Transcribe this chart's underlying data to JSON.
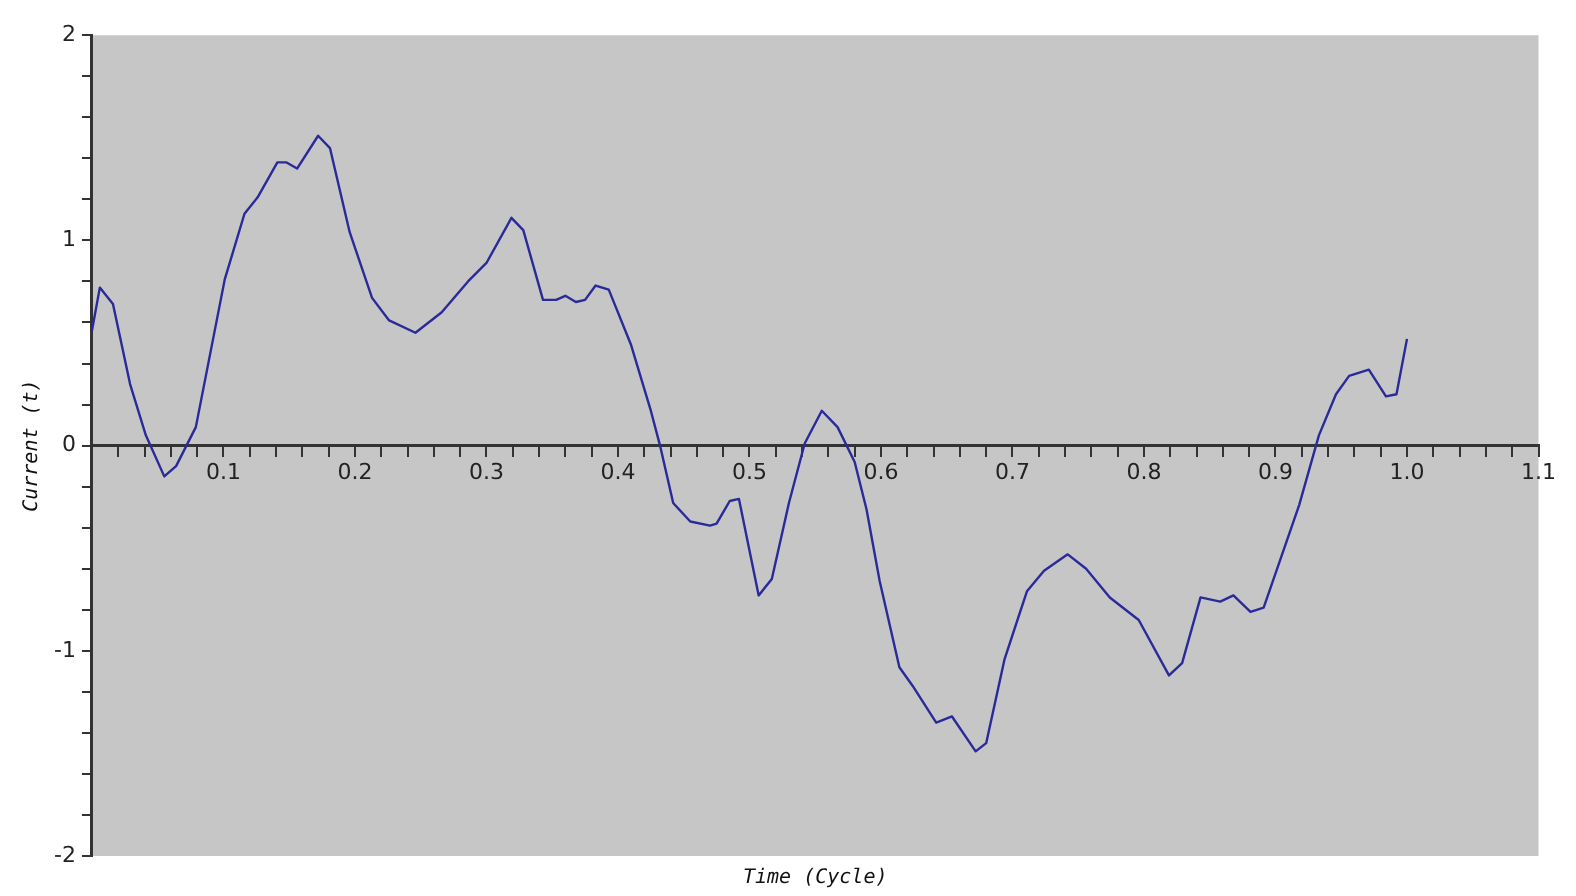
{
  "chart_data": {
    "type": "line",
    "xlabel": "Time (Cycle)",
    "ylabel": "Current (t)",
    "xlim": [
      0,
      1.1
    ],
    "ylim": [
      -2,
      2
    ],
    "xticks": [
      {
        "value": 0.02,
        "label": null
      },
      {
        "value": 0.04,
        "label": null
      },
      {
        "value": 0.06,
        "label": null
      },
      {
        "value": 0.08,
        "label": null
      },
      {
        "value": 0.1,
        "label": "0.1"
      },
      {
        "value": 0.12,
        "label": null
      },
      {
        "value": 0.14,
        "label": null
      },
      {
        "value": 0.16,
        "label": null
      },
      {
        "value": 0.18,
        "label": null
      },
      {
        "value": 0.2,
        "label": "0.2"
      },
      {
        "value": 0.22,
        "label": null
      },
      {
        "value": 0.24,
        "label": null
      },
      {
        "value": 0.26,
        "label": null
      },
      {
        "value": 0.28,
        "label": null
      },
      {
        "value": 0.3,
        "label": "0.3"
      },
      {
        "value": 0.32,
        "label": null
      },
      {
        "value": 0.34,
        "label": null
      },
      {
        "value": 0.36,
        "label": null
      },
      {
        "value": 0.38,
        "label": null
      },
      {
        "value": 0.4,
        "label": "0.4"
      },
      {
        "value": 0.42,
        "label": null
      },
      {
        "value": 0.44,
        "label": null
      },
      {
        "value": 0.46,
        "label": null
      },
      {
        "value": 0.48,
        "label": null
      },
      {
        "value": 0.5,
        "label": "0.5"
      },
      {
        "value": 0.52,
        "label": null
      },
      {
        "value": 0.54,
        "label": null
      },
      {
        "value": 0.56,
        "label": null
      },
      {
        "value": 0.58,
        "label": null
      },
      {
        "value": 0.6,
        "label": "0.6"
      },
      {
        "value": 0.62,
        "label": null
      },
      {
        "value": 0.64,
        "label": null
      },
      {
        "value": 0.66,
        "label": null
      },
      {
        "value": 0.68,
        "label": null
      },
      {
        "value": 0.7,
        "label": "0.7"
      },
      {
        "value": 0.72,
        "label": null
      },
      {
        "value": 0.74,
        "label": null
      },
      {
        "value": 0.76,
        "label": null
      },
      {
        "value": 0.78,
        "label": null
      },
      {
        "value": 0.8,
        "label": "0.8"
      },
      {
        "value": 0.82,
        "label": null
      },
      {
        "value": 0.84,
        "label": null
      },
      {
        "value": 0.86,
        "label": null
      },
      {
        "value": 0.88,
        "label": null
      },
      {
        "value": 0.9,
        "label": "0.9"
      },
      {
        "value": 0.92,
        "label": null
      },
      {
        "value": 0.94,
        "label": null
      },
      {
        "value": 0.96,
        "label": null
      },
      {
        "value": 0.98,
        "label": null
      },
      {
        "value": 1.0,
        "label": "1.0"
      },
      {
        "value": 1.02,
        "label": null
      },
      {
        "value": 1.04,
        "label": null
      },
      {
        "value": 1.06,
        "label": null
      },
      {
        "value": 1.08,
        "label": null
      },
      {
        "value": 1.1,
        "label": "1.1"
      }
    ],
    "yticks": [
      -2,
      {
        "value": -1.8,
        "label": null
      },
      {
        "value": -1.6,
        "label": null
      },
      {
        "value": -1.4,
        "label": null
      },
      {
        "value": -1.2,
        "label": null
      },
      -1,
      {
        "value": -0.8,
        "label": null
      },
      {
        "value": -0.6,
        "label": null
      },
      {
        "value": -0.4,
        "label": null
      },
      {
        "value": -0.2,
        "label": null
      },
      0,
      {
        "value": 0.2,
        "label": null
      },
      {
        "value": 0.4,
        "label": null
      },
      {
        "value": 0.6,
        "label": null
      },
      {
        "value": 0.8,
        "label": null
      },
      1,
      {
        "value": 1.2,
        "label": null
      },
      {
        "value": 1.4,
        "label": null
      },
      {
        "value": 1.6,
        "label": null
      },
      {
        "value": 1.8,
        "label": null
      },
      2
    ],
    "grid": false,
    "legend": false,
    "marker": "none",
    "line_style": "solid",
    "series": [
      {
        "color": "#2a2a9a",
        "x": [
          0.0,
          0.006,
          0.016,
          0.029,
          0.041,
          0.055,
          0.064,
          0.079,
          0.101,
          0.116,
          0.126,
          0.141,
          0.148,
          0.156,
          0.172,
          0.181,
          0.196,
          0.213,
          0.226,
          0.246,
          0.266,
          0.286,
          0.3,
          0.319,
          0.328,
          0.343,
          0.353,
          0.36,
          0.368,
          0.375,
          0.383,
          0.393,
          0.41,
          0.425,
          0.432,
          0.442,
          0.455,
          0.47,
          0.475,
          0.485,
          0.492,
          0.507,
          0.517,
          0.53,
          0.542,
          0.555,
          0.567,
          0.58,
          0.589,
          0.599,
          0.614,
          0.624,
          0.642,
          0.654,
          0.672,
          0.68,
          0.694,
          0.711,
          0.724,
          0.742,
          0.756,
          0.774,
          0.796,
          0.819,
          0.829,
          0.843,
          0.858,
          0.868,
          0.881,
          0.891,
          0.918,
          0.933,
          0.946,
          0.956,
          0.971,
          0.984,
          0.992,
          1.0
        ],
        "values": [
          0.56,
          0.77,
          0.69,
          0.3,
          0.05,
          -0.15,
          -0.1,
          0.09,
          0.81,
          1.13,
          1.21,
          1.38,
          1.38,
          1.35,
          1.51,
          1.45,
          1.04,
          0.72,
          0.61,
          0.55,
          0.65,
          0.8,
          0.89,
          1.11,
          1.05,
          0.71,
          0.71,
          0.73,
          0.7,
          0.71,
          0.78,
          0.76,
          0.49,
          0.17,
          0.0,
          -0.28,
          -0.37,
          -0.39,
          -0.38,
          -0.27,
          -0.26,
          -0.73,
          -0.65,
          -0.28,
          0.01,
          0.17,
          0.09,
          -0.08,
          -0.31,
          -0.66,
          -1.08,
          -1.17,
          -1.35,
          -1.32,
          -1.49,
          -1.45,
          -1.04,
          -0.71,
          -0.61,
          -0.53,
          -0.6,
          -0.74,
          -0.85,
          -1.12,
          -1.06,
          -0.74,
          -0.76,
          -0.73,
          -0.81,
          -0.79,
          -0.29,
          0.05,
          0.25,
          0.34,
          0.37,
          0.24,
          0.25,
          0.52
        ]
      }
    ]
  }
}
